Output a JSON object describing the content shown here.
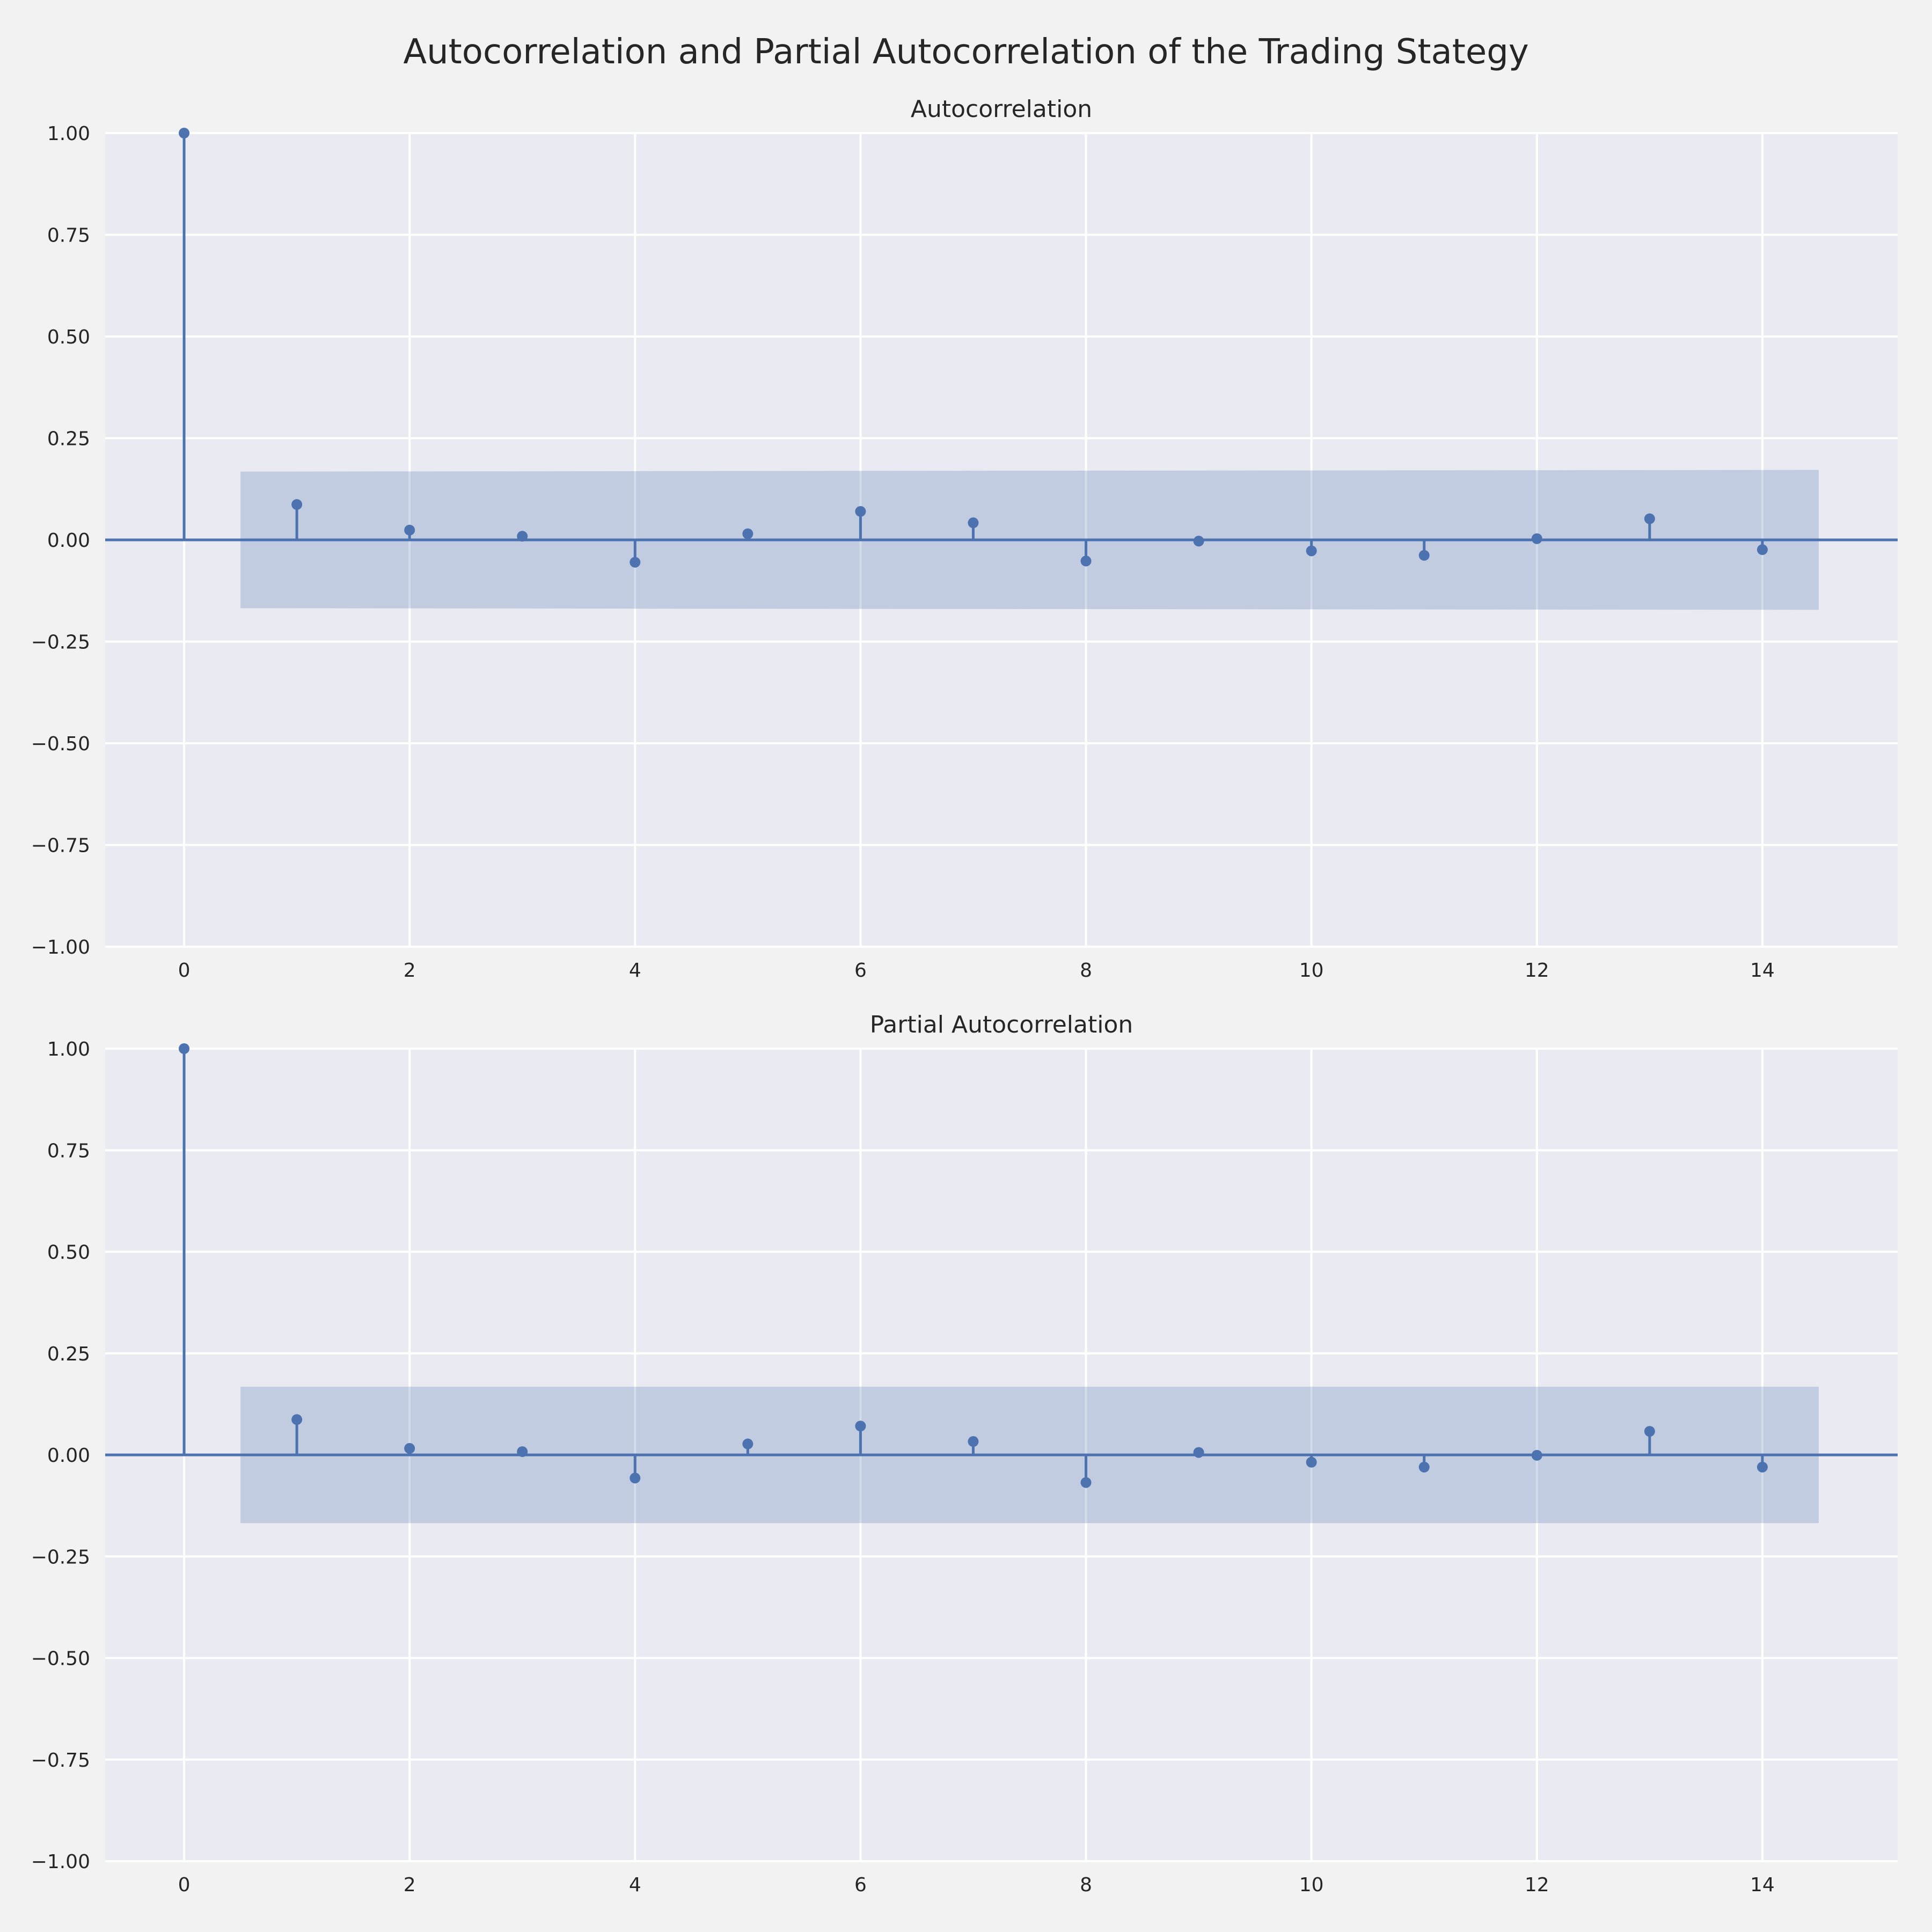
{
  "figure": {
    "title": "Autocorrelation and Partial Autocorrelation of the Trading Stategy"
  },
  "colors": {
    "background": "#f2f2f2",
    "plot_background": "#eaeaf2",
    "grid": "#ffffff",
    "series": "#4c72b0",
    "text": "#262626"
  },
  "chart_data": [
    {
      "type": "stem",
      "title": "Autocorrelation",
      "xlim": [
        -0.7,
        15.2
      ],
      "ylim": [
        -1.0,
        1.0
      ],
      "xticks": [
        0,
        2,
        4,
        6,
        8,
        10,
        12,
        14
      ],
      "xtick_labels": [
        "0",
        "2",
        "4",
        "6",
        "8",
        "10",
        "12",
        "14"
      ],
      "yticks": [
        -1.0,
        -0.75,
        -0.5,
        -0.25,
        0.0,
        0.25,
        0.5,
        0.75,
        1.0
      ],
      "ytick_labels": [
        "−1.00",
        "−0.75",
        "−0.50",
        "−0.25",
        "0.00",
        "0.25",
        "0.50",
        "0.75",
        "1.00"
      ],
      "grid": true,
      "lags": [
        0,
        1,
        2,
        3,
        4,
        5,
        6,
        7,
        8,
        9,
        10,
        11,
        12,
        13,
        14
      ],
      "values": [
        1.0,
        0.087,
        0.024,
        0.009,
        -0.055,
        0.015,
        0.07,
        0.042,
        -0.052,
        -0.003,
        -0.027,
        -0.038,
        0.003,
        0.052,
        -0.024
      ],
      "confidence_band": {
        "x": [
          0.5,
          14.5
        ],
        "lower": [
          -0.168,
          -0.172
        ],
        "upper": [
          0.168,
          0.172
        ]
      }
    },
    {
      "type": "stem",
      "title": "Partial Autocorrelation",
      "xlim": [
        -0.7,
        15.2
      ],
      "ylim": [
        -1.0,
        1.0
      ],
      "xticks": [
        0,
        2,
        4,
        6,
        8,
        10,
        12,
        14
      ],
      "xtick_labels": [
        "0",
        "2",
        "4",
        "6",
        "8",
        "10",
        "12",
        "14"
      ],
      "yticks": [
        -1.0,
        -0.75,
        -0.5,
        -0.25,
        0.0,
        0.25,
        0.5,
        0.75,
        1.0
      ],
      "ytick_labels": [
        "−1.00",
        "−0.75",
        "−0.50",
        "−0.25",
        "0.00",
        "0.25",
        "0.50",
        "0.75",
        "1.00"
      ],
      "grid": true,
      "lags": [
        0,
        1,
        2,
        3,
        4,
        5,
        6,
        7,
        8,
        9,
        10,
        11,
        12,
        13,
        14
      ],
      "values": [
        1.0,
        0.087,
        0.016,
        0.008,
        -0.057,
        0.027,
        0.071,
        0.033,
        -0.068,
        0.006,
        -0.018,
        -0.03,
        -0.001,
        0.058,
        -0.03
      ],
      "confidence_band": {
        "x": [
          0.5,
          14.5
        ],
        "lower": [
          -0.168,
          -0.168
        ],
        "upper": [
          0.168,
          0.168
        ]
      }
    }
  ]
}
